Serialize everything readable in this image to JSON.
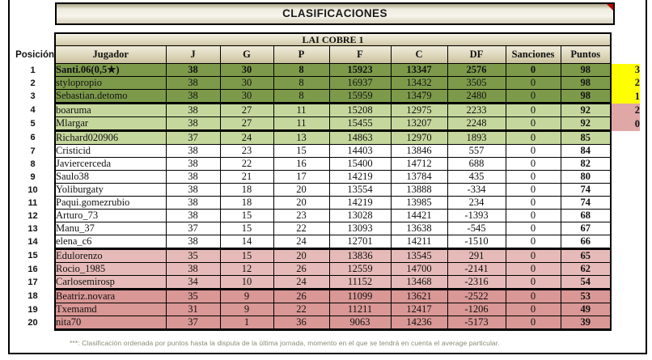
{
  "title": "CLASIFICACIONES",
  "comment_marker": "comment-indicator",
  "table": {
    "league": "LAI COBRE 1",
    "position_column_header": "Posición",
    "columns": [
      "Jugador",
      "J",
      "G",
      "P",
      "F",
      "C",
      "DF",
      "Sanciones",
      "Puntos"
    ],
    "rows": [
      {
        "pos": 1,
        "player": "Santi.06(0,5★)",
        "J": 38,
        "G": 30,
        "P": 8,
        "F": 15923,
        "C": 13347,
        "DF": 2576,
        "Sanciones": 0,
        "Puntos": 98,
        "zone": "green_dark",
        "bold": true,
        "separator_below": false,
        "side_value": "3",
        "side_bg": "yellow"
      },
      {
        "pos": 2,
        "player": "stylopropio",
        "J": 38,
        "G": 30,
        "P": 8,
        "F": 16937,
        "C": 13432,
        "DF": 3505,
        "Sanciones": 0,
        "Puntos": 98,
        "zone": "green_dark",
        "bold": false,
        "separator_below": false,
        "side_value": "2",
        "side_bg": "yellow"
      },
      {
        "pos": 3,
        "player": "Sebastian.detomo",
        "J": 38,
        "G": 30,
        "P": 8,
        "F": 15959,
        "C": 13479,
        "DF": 2480,
        "Sanciones": 0,
        "Puntos": 98,
        "zone": "green_dark",
        "bold": false,
        "separator_below": true,
        "side_value": "1",
        "side_bg": "yellow"
      },
      {
        "pos": 4,
        "player": "boaruma",
        "J": 38,
        "G": 27,
        "P": 11,
        "F": 15208,
        "C": 12975,
        "DF": 2233,
        "Sanciones": 0,
        "Puntos": 92,
        "zone": "green_light",
        "bold": false,
        "separator_below": false,
        "side_value": "2",
        "side_bg": "rose"
      },
      {
        "pos": 5,
        "player": "Mlargar",
        "J": 38,
        "G": 27,
        "P": 11,
        "F": 15455,
        "C": 13207,
        "DF": 2248,
        "Sanciones": 0,
        "Puntos": 92,
        "zone": "green_light",
        "bold": false,
        "separator_below": true,
        "side_value": "0",
        "side_bg": "rose"
      },
      {
        "pos": 6,
        "player": "Richard020906",
        "J": 37,
        "G": 24,
        "P": 13,
        "F": 14863,
        "C": 12970,
        "DF": 1893,
        "Sanciones": 0,
        "Puntos": 85,
        "zone": "green_light",
        "bold": false,
        "separator_below": false,
        "side_value": "",
        "side_bg": ""
      },
      {
        "pos": 7,
        "player": "Cristicid",
        "J": 38,
        "G": 23,
        "P": 15,
        "F": 14403,
        "C": 13846,
        "DF": 557,
        "Sanciones": 0,
        "Puntos": 84,
        "zone": "white",
        "bold": false,
        "separator_below": false,
        "side_value": "",
        "side_bg": ""
      },
      {
        "pos": 8,
        "player": "Javiercerceda",
        "J": 38,
        "G": 22,
        "P": 16,
        "F": 15400,
        "C": 14712,
        "DF": 688,
        "Sanciones": 0,
        "Puntos": 82,
        "zone": "white",
        "bold": false,
        "separator_below": false,
        "side_value": "",
        "side_bg": ""
      },
      {
        "pos": 9,
        "player": "Saulo38",
        "J": 38,
        "G": 21,
        "P": 17,
        "F": 14219,
        "C": 13784,
        "DF": 435,
        "Sanciones": 0,
        "Puntos": 80,
        "zone": "white",
        "bold": false,
        "separator_below": false,
        "side_value": "",
        "side_bg": ""
      },
      {
        "pos": 10,
        "player": "Yoliburgaty",
        "J": 38,
        "G": 18,
        "P": 20,
        "F": 13554,
        "C": 13888,
        "DF": -334,
        "Sanciones": 0,
        "Puntos": 74,
        "zone": "white",
        "bold": false,
        "separator_below": false,
        "side_value": "",
        "side_bg": ""
      },
      {
        "pos": 11,
        "player": "Paqui.gomezrubio",
        "J": 38,
        "G": 18,
        "P": 20,
        "F": 14219,
        "C": 13985,
        "DF": 234,
        "Sanciones": 0,
        "Puntos": 74,
        "zone": "white",
        "bold": false,
        "separator_below": false,
        "side_value": "",
        "side_bg": ""
      },
      {
        "pos": 12,
        "player": "Arturo_73",
        "J": 38,
        "G": 15,
        "P": 23,
        "F": 13028,
        "C": 14421,
        "DF": -1393,
        "Sanciones": 0,
        "Puntos": 68,
        "zone": "white",
        "bold": false,
        "separator_below": false,
        "side_value": "",
        "side_bg": ""
      },
      {
        "pos": 13,
        "player": "Manu_37",
        "J": 37,
        "G": 15,
        "P": 22,
        "F": 13093,
        "C": 13638,
        "DF": -545,
        "Sanciones": 0,
        "Puntos": 67,
        "zone": "white",
        "bold": false,
        "separator_below": false,
        "side_value": "",
        "side_bg": ""
      },
      {
        "pos": 14,
        "player": "elena_c6",
        "J": 38,
        "G": 14,
        "P": 24,
        "F": 12701,
        "C": 14211,
        "DF": -1510,
        "Sanciones": 0,
        "Puntos": 66,
        "zone": "white",
        "bold": false,
        "separator_below": true,
        "side_value": "",
        "side_bg": ""
      },
      {
        "pos": 15,
        "player": "Edulorenzo",
        "J": 35,
        "G": 15,
        "P": 20,
        "F": 13836,
        "C": 13545,
        "DF": 291,
        "Sanciones": 0,
        "Puntos": 65,
        "zone": "pink_light",
        "bold": false,
        "separator_below": false,
        "side_value": "",
        "side_bg": ""
      },
      {
        "pos": 16,
        "player": "Rocio_1985",
        "J": 38,
        "G": 12,
        "P": 26,
        "F": 12559,
        "C": 14700,
        "DF": -2141,
        "Sanciones": 0,
        "Puntos": 62,
        "zone": "pink_light",
        "bold": false,
        "separator_below": false,
        "side_value": "",
        "side_bg": ""
      },
      {
        "pos": 17,
        "player": "Carlosemirosp",
        "J": 34,
        "G": 10,
        "P": 24,
        "F": 11152,
        "C": 13468,
        "DF": -2316,
        "Sanciones": 0,
        "Puntos": 54,
        "zone": "pink_light",
        "bold": false,
        "separator_below": true,
        "side_value": "",
        "side_bg": ""
      },
      {
        "pos": 18,
        "player": "Beatriz.novara",
        "J": 35,
        "G": 9,
        "P": 26,
        "F": 11099,
        "C": 13621,
        "DF": -2522,
        "Sanciones": 0,
        "Puntos": 53,
        "zone": "pink_dark",
        "bold": false,
        "separator_below": false,
        "side_value": "",
        "side_bg": ""
      },
      {
        "pos": 19,
        "player": "Txemamd",
        "J": 31,
        "G": 9,
        "P": 22,
        "F": 11211,
        "C": 12417,
        "DF": -1206,
        "Sanciones": 0,
        "Puntos": 49,
        "zone": "pink_dark",
        "bold": false,
        "separator_below": false,
        "side_value": "",
        "side_bg": ""
      },
      {
        "pos": 20,
        "player": "nita70",
        "J": 37,
        "G": 1,
        "P": 36,
        "F": 9063,
        "C": 14236,
        "DF": -5173,
        "Sanciones": 0,
        "Puntos": 39,
        "zone": "pink_dark",
        "bold": false,
        "separator_below": false,
        "side_value": "",
        "side_bg": ""
      }
    ]
  },
  "footnote": "***: Clasificación ordenada por puntos hasta la disputa de la última jornada, momento en el que se tendrá en cuenta el average particular.",
  "colors": {
    "zone_green_dark": "#7D9A4B",
    "zone_green_light": "#C6D79D",
    "zone_white": "#FFFFFF",
    "zone_pink_light": "#E6BAB8",
    "zone_pink_dark": "#D99795",
    "side_yellow": "#FFFF00",
    "side_rose": "#DFA7A6",
    "comment_marker_red": "#C00000"
  }
}
